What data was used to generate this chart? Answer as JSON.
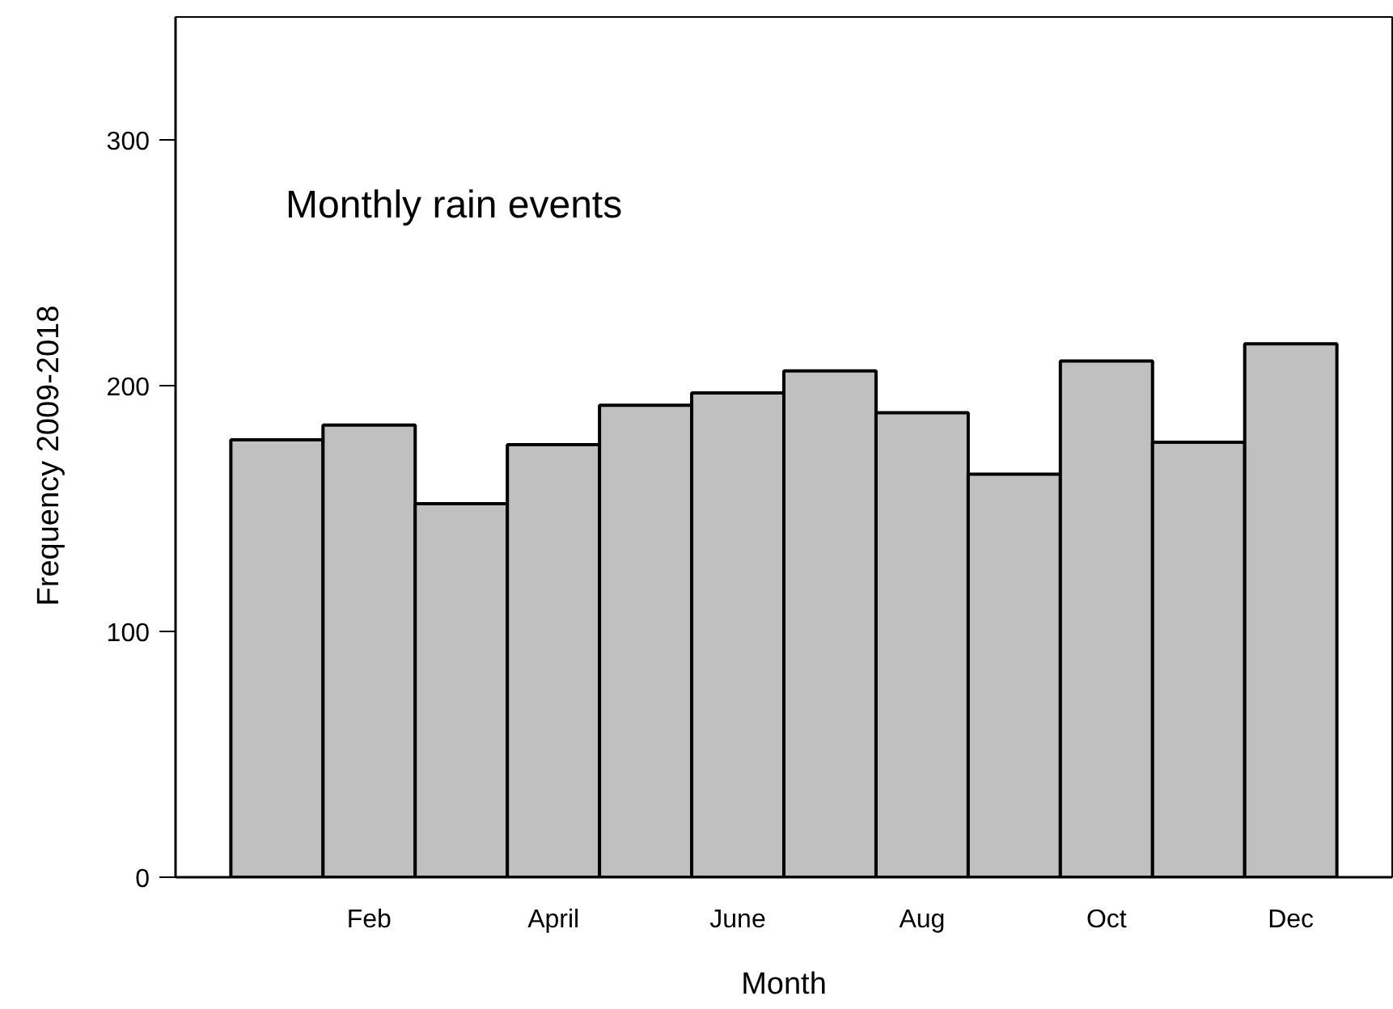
{
  "chart_data": {
    "type": "bar",
    "xlabel": "Month",
    "ylabel": "Frequency   2009-2018",
    "annotations": [
      "Monthly rain events"
    ],
    "categories": [
      null,
      "Feb",
      null,
      "April",
      null,
      "June",
      null,
      "Aug",
      null,
      "Oct",
      null,
      "Dec"
    ],
    "values": [
      178,
      184,
      152,
      176,
      192,
      197,
      206,
      189,
      164,
      210,
      177,
      217
    ],
    "color": "#c0c0c0",
    "ylim": [
      0,
      350
    ],
    "yticks": [
      0,
      100,
      200,
      300
    ],
    "grid": false
  }
}
